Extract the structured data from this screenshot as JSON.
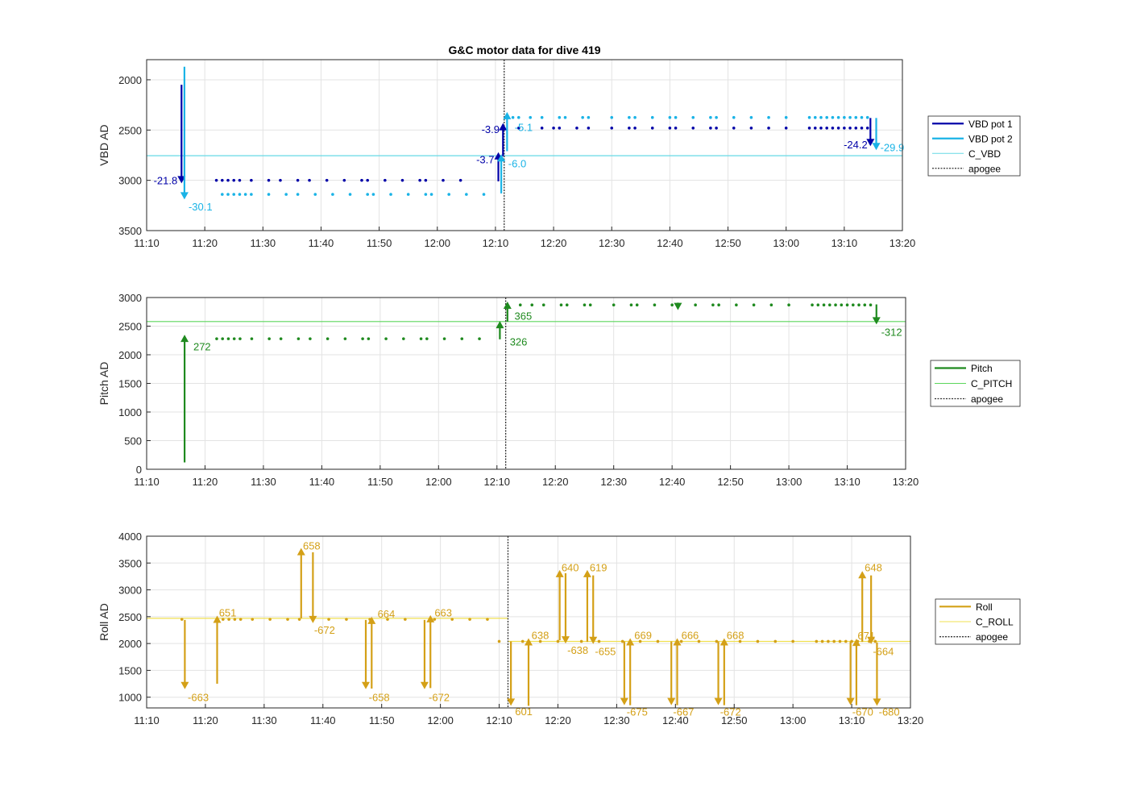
{
  "title": "G&C motor data for dive 419",
  "chart_data": [
    {
      "type": "line",
      "id": "vbd",
      "ylabel": "VBD AD",
      "xlim": [
        "11:10",
        "13:20"
      ],
      "ylim": [
        1800,
        3500
      ],
      "y_reversed": true,
      "yticks": [
        2000,
        2500,
        3000,
        3500
      ],
      "xticks": [
        "11:10",
        "11:20",
        "11:30",
        "11:40",
        "11:50",
        "12:00",
        "12:10",
        "12:20",
        "12:30",
        "12:40",
        "12:50",
        "13:00",
        "13:10",
        "13:20"
      ],
      "grid": true,
      "legend_position": "right",
      "legend": [
        {
          "label": "VBD pot 1",
          "style": "thick",
          "color": "#0000a8"
        },
        {
          "label": "VBD pot 2",
          "style": "thick",
          "color": "#1ab3e6"
        },
        {
          "label": "C_VBD",
          "style": "thin",
          "color": "#66d9e6"
        },
        {
          "label": "apogee",
          "style": "dotted",
          "color": "#333333"
        }
      ],
      "reference_lines": [
        {
          "name": "C_VBD",
          "y": 2755,
          "color": "#66d9e6"
        }
      ],
      "apogee": "12:11.5",
      "series": [
        {
          "name": "VBD pot 1",
          "color": "#0000a8",
          "times": [
            "11:22",
            "11:23",
            "11:24",
            "11:25",
            "11:26",
            "11:28",
            "11:31",
            "11:33",
            "11:36",
            "11:38",
            "11:41",
            "11:44",
            "11:47",
            "11:48",
            "11:51",
            "11:54",
            "11:57",
            "11:58",
            "12:01",
            "12:04"
          ],
          "y": 3000
        },
        {
          "name": "VBD pot 1 (after apogee)",
          "color": "#0000a8",
          "times": [
            "12:14",
            "12:18",
            "12:20",
            "12:21",
            "12:24",
            "12:26",
            "12:30",
            "12:33",
            "12:34",
            "12:37",
            "12:40",
            "12:41",
            "12:44",
            "12:47",
            "12:48",
            "12:51",
            "12:54",
            "12:57",
            "13:00",
            "13:04",
            "13:05",
            "13:06",
            "13:07",
            "13:08",
            "13:09",
            "13:10",
            "13:11",
            "13:12",
            "13:13",
            "13:14"
          ],
          "y": 2480
        },
        {
          "name": "VBD pot 2",
          "color": "#1ab3e6",
          "times": [
            "11:23",
            "11:24",
            "11:25",
            "11:26",
            "11:27",
            "11:28",
            "11:31",
            "11:34",
            "11:36",
            "11:39",
            "11:42",
            "11:45",
            "11:48",
            "11:49",
            "11:52",
            "11:55",
            "11:58",
            "11:59",
            "12:02",
            "12:05",
            "12:08"
          ],
          "y": 3140
        },
        {
          "name": "VBD pot 2 (after apogee)",
          "color": "#1ab3e6",
          "times": [
            "12:13",
            "12:14",
            "12:16",
            "12:18",
            "12:21",
            "12:22",
            "12:25",
            "12:26",
            "12:30",
            "12:33",
            "12:34",
            "12:37",
            "12:40",
            "12:41",
            "12:44",
            "12:47",
            "12:48",
            "12:51",
            "12:54",
            "12:57",
            "13:00",
            "13:04",
            "13:05",
            "13:06",
            "13:07",
            "13:08",
            "13:09",
            "13:10",
            "13:11",
            "13:12",
            "13:13",
            "13:14"
          ],
          "y": 2375
        }
      ],
      "arrows": [
        {
          "t": "11:16",
          "from": 2050,
          "to": 3030,
          "color": "#0000a8",
          "label": "-21.8",
          "lt": "11:15.3",
          "ly": 3000,
          "anchor": "end"
        },
        {
          "t": "11:16.5",
          "from": 1870,
          "to": 3190,
          "color": "#1ab3e6",
          "label": "-30.1",
          "lt": "11:17.2",
          "ly": 3260,
          "anchor": "start"
        },
        {
          "t": "12:10.5",
          "from": 3010,
          "to": 2720,
          "color": "#0000a8",
          "label": "-3.7",
          "lt": "12:09.8",
          "ly": 2790,
          "anchor": "end"
        },
        {
          "t": "12:11",
          "from": 3130,
          "to": 2740,
          "color": "#1ab3e6",
          "label": "-6.0",
          "lt": "12:12.2",
          "ly": 2830,
          "anchor": "start"
        },
        {
          "t": "12:11.3",
          "from": 2760,
          "to": 2430,
          "color": "#0000a8",
          "label": "-3.9",
          "lt": "12:10.7",
          "ly": 2490,
          "anchor": "end"
        },
        {
          "t": "12:12",
          "from": 2710,
          "to": 2320,
          "color": "#1ab3e6",
          "label": "-5.1",
          "lt": "12:13.3",
          "ly": 2470,
          "anchor": "start"
        },
        {
          "t": "13:14.5",
          "from": 2380,
          "to": 2660,
          "color": "#0000a8",
          "label": "-24.2",
          "lt": "13:14",
          "ly": 2640,
          "anchor": "end"
        },
        {
          "t": "13:15.5",
          "from": 2380,
          "to": 2700,
          "color": "#1ab3e6",
          "label": "-29.9",
          "lt": "13:16.2",
          "ly": 2670,
          "anchor": "start"
        }
      ]
    },
    {
      "type": "line",
      "id": "pitch",
      "ylabel": "Pitch AD",
      "xlim": [
        "11:10",
        "13:20"
      ],
      "ylim": [
        0,
        3000
      ],
      "y_reversed": false,
      "yticks": [
        0,
        500,
        1000,
        1500,
        2000,
        2500,
        3000
      ],
      "xticks": [
        "11:10",
        "11:20",
        "11:30",
        "11:40",
        "11:50",
        "12:00",
        "12:10",
        "12:20",
        "12:30",
        "12:40",
        "12:50",
        "13:00",
        "13:10",
        "13:20"
      ],
      "grid": true,
      "legend_position": "right",
      "legend": [
        {
          "label": "Pitch",
          "style": "thick",
          "color": "#1f8a1f"
        },
        {
          "label": "C_PITCH",
          "style": "thin",
          "color": "#5cd65c"
        },
        {
          "label": "apogee",
          "style": "dotted",
          "color": "#333333"
        }
      ],
      "reference_lines": [
        {
          "name": "C_PITCH",
          "y": 2580,
          "color": "#5cd65c"
        }
      ],
      "apogee": "12:11.5",
      "series": [
        {
          "name": "Pitch",
          "color": "#1f8a1f",
          "times": [
            "11:22",
            "11:23",
            "11:24",
            "11:25",
            "11:26",
            "11:28",
            "11:31",
            "11:33",
            "11:36",
            "11:38",
            "11:41",
            "11:44",
            "11:47",
            "11:48",
            "11:51",
            "11:54",
            "11:57",
            "11:58",
            "12:01",
            "12:04",
            "12:07"
          ],
          "y": 2280
        },
        {
          "name": "Pitch (after apogee)",
          "color": "#1f8a1f",
          "times": [
            "12:14",
            "12:16",
            "12:18",
            "12:21",
            "12:22",
            "12:25",
            "12:26",
            "12:30",
            "12:33",
            "12:34",
            "12:37",
            "12:40",
            "12:44",
            "12:47",
            "12:48",
            "12:51",
            "12:54",
            "12:57",
            "13:00",
            "13:04",
            "13:05",
            "13:06",
            "13:07",
            "13:08",
            "13:09",
            "13:10",
            "13:11",
            "13:12",
            "13:13",
            "13:14"
          ],
          "y": 2870
        }
      ],
      "arrows": [
        {
          "t": "11:16.5",
          "from": 120,
          "to": 2350,
          "color": "#1f8a1f",
          "label": "272",
          "lt": "11:18",
          "ly": 2150,
          "anchor": "start"
        },
        {
          "t": "12:10.5",
          "from": 2270,
          "to": 2590,
          "color": "#1f8a1f",
          "label": "326",
          "lt": "12:12.2",
          "ly": 2230,
          "anchor": "start"
        },
        {
          "t": "12:11.8",
          "from": 2580,
          "to": 2930,
          "color": "#1f8a1f",
          "label": "365",
          "lt": "12:13",
          "ly": 2680,
          "anchor": "start"
        },
        {
          "t": "12:41",
          "from": 2910,
          "to": 2780,
          "color": "#1f8a1f",
          "label": "",
          "lt": "12:41",
          "ly": 2780,
          "anchor": "start"
        },
        {
          "t": "13:15",
          "from": 2880,
          "to": 2530,
          "color": "#1f8a1f",
          "label": "-312",
          "lt": "13:15.8",
          "ly": 2400,
          "anchor": "start"
        }
      ]
    },
    {
      "type": "line",
      "id": "roll",
      "ylabel": "Roll AD",
      "xlim": [
        "11:10",
        "13:20"
      ],
      "ylim": [
        800,
        4000
      ],
      "y_reversed": false,
      "yticks": [
        1000,
        1500,
        2000,
        2500,
        3000,
        3500,
        4000
      ],
      "xticks": [
        "11:10",
        "11:20",
        "11:30",
        "11:40",
        "11:50",
        "12:00",
        "12:10",
        "12:20",
        "12:30",
        "12:40",
        "12:50",
        "13:00",
        "13:10",
        "13:20"
      ],
      "grid": true,
      "legend_position": "right",
      "legend": [
        {
          "label": "Roll",
          "style": "thick",
          "color": "#d4a017"
        },
        {
          "label": "C_ROLL",
          "style": "thin",
          "color": "#f0e050"
        },
        {
          "label": "apogee",
          "style": "dotted",
          "color": "#333333"
        }
      ],
      "reference_lines": [
        {
          "name": "C_ROLL",
          "y": 2470,
          "color": "#f0e050",
          "from": "11:10",
          "to": "12:11.5"
        },
        {
          "name": "C_ROLL",
          "y": 2040,
          "color": "#f0e050",
          "from": "12:11.5",
          "to": "13:20"
        }
      ],
      "apogee": "12:11.5",
      "series": [
        {
          "name": "Roll",
          "color": "#d4a017",
          "times": [
            "11:16",
            "11:23",
            "11:24",
            "11:25",
            "11:26",
            "11:28",
            "11:31",
            "11:34",
            "11:36",
            "11:41",
            "11:44",
            "11:48",
            "11:51",
            "11:54",
            "11:59",
            "12:02",
            "12:05",
            "12:08"
          ],
          "y": 2450
        },
        {
          "name": "Roll (after apogee)",
          "color": "#d4a017",
          "times": [
            "12:10",
            "12:14",
            "12:17",
            "12:20",
            "12:24",
            "12:27",
            "12:31",
            "12:34",
            "12:37",
            "12:41",
            "12:44",
            "12:47",
            "12:51",
            "12:54",
            "12:57",
            "13:00",
            "13:04",
            "13:05",
            "13:06",
            "13:07",
            "13:08",
            "13:09",
            "13:10",
            "13:11",
            "13:13",
            "13:14"
          ],
          "y": 2040
        }
      ],
      "arrows": [
        {
          "t": "11:16.5",
          "from": 2440,
          "to": 1150,
          "color": "#d4a017",
          "label": "-663",
          "lt": "11:17",
          "ly": 1000,
          "anchor": "start"
        },
        {
          "t": "11:22",
          "from": 1250,
          "to": 2520,
          "color": "#d4a017",
          "label": "651",
          "lt": "11:22.3",
          "ly": 2580,
          "anchor": "start"
        },
        {
          "t": "11:36.3",
          "from": 2470,
          "to": 3780,
          "color": "#d4a017",
          "label": "658",
          "lt": "11:36.6",
          "ly": 3830,
          "anchor": "start"
        },
        {
          "t": "11:38.3",
          "from": 3700,
          "to": 2380,
          "color": "#d4a017",
          "label": "-672",
          "lt": "11:38.5",
          "ly": 2260,
          "anchor": "start"
        },
        {
          "t": "11:47.3",
          "from": 2440,
          "to": 1150,
          "color": "#d4a017",
          "label": "-658",
          "lt": "11:47.8",
          "ly": 1000,
          "anchor": "start"
        },
        {
          "t": "11:48.3",
          "from": 1160,
          "to": 2500,
          "color": "#d4a017",
          "label": "664",
          "lt": "11:49.3",
          "ly": 2560,
          "anchor": "start"
        },
        {
          "t": "11:57.3",
          "from": 2440,
          "to": 1150,
          "color": "#d4a017",
          "label": "-672",
          "lt": "11:58",
          "ly": 1000,
          "anchor": "start"
        },
        {
          "t": "11:58.3",
          "from": 1170,
          "to": 2530,
          "color": "#d4a017",
          "label": "663",
          "lt": "11:59",
          "ly": 2580,
          "anchor": "start"
        },
        {
          "t": "12:12",
          "from": 2040,
          "to": 840,
          "color": "#d4a017",
          "label": "601",
          "lt": "12:12.7",
          "ly": 740,
          "anchor": "start"
        },
        {
          "t": "12:15",
          "from": 840,
          "to": 2100,
          "color": "#d4a017",
          "label": "638",
          "lt": "12:15.5",
          "ly": 2160,
          "anchor": "start"
        },
        {
          "t": "12:20.3",
          "from": 2060,
          "to": 3370,
          "color": "#d4a017",
          "label": "640",
          "lt": "12:20.6",
          "ly": 3420,
          "anchor": "start"
        },
        {
          "t": "12:21.3",
          "from": 3310,
          "to": 2000,
          "color": "#d4a017",
          "label": "-638",
          "lt": "12:21.6",
          "ly": 1880,
          "anchor": "start"
        },
        {
          "t": "12:25",
          "from": 2030,
          "to": 3370,
          "color": "#d4a017",
          "label": "619",
          "lt": "12:25.4",
          "ly": 3420,
          "anchor": "start"
        },
        {
          "t": "12:26",
          "from": 3270,
          "to": 1990,
          "color": "#d4a017",
          "label": "-655",
          "lt": "12:26.3",
          "ly": 1860,
          "anchor": "start"
        },
        {
          "t": "12:31.3",
          "from": 2040,
          "to": 850,
          "color": "#d4a017",
          "label": "-675",
          "lt": "12:31.7",
          "ly": 730,
          "anchor": "start"
        },
        {
          "t": "12:32.3",
          "from": 850,
          "to": 2100,
          "color": "#d4a017",
          "label": "669",
          "lt": "12:33",
          "ly": 2160,
          "anchor": "start"
        },
        {
          "t": "12:39.3",
          "from": 2040,
          "to": 850,
          "color": "#d4a017",
          "label": "-667",
          "lt": "12:39.6",
          "ly": 730,
          "anchor": "start"
        },
        {
          "t": "12:40.3",
          "from": 850,
          "to": 2100,
          "color": "#d4a017",
          "label": "666",
          "lt": "12:41",
          "ly": 2160,
          "anchor": "start"
        },
        {
          "t": "12:47.3",
          "from": 2040,
          "to": 850,
          "color": "#d4a017",
          "label": "-672",
          "lt": "12:47.6",
          "ly": 730,
          "anchor": "start"
        },
        {
          "t": "12:48.3",
          "from": 850,
          "to": 2100,
          "color": "#d4a017",
          "label": "668",
          "lt": "12:48.7",
          "ly": 2160,
          "anchor": "start"
        },
        {
          "t": "13:09.8",
          "from": 2040,
          "to": 850,
          "color": "#d4a017",
          "label": "-670",
          "lt": "13:10.1",
          "ly": 730,
          "anchor": "start"
        },
        {
          "t": "13:10.8",
          "from": 850,
          "to": 2090,
          "color": "#d4a017",
          "label": "671",
          "lt": "13:11",
          "ly": 2150,
          "anchor": "start"
        },
        {
          "t": "13:11.8",
          "from": 2030,
          "to": 3350,
          "color": "#d4a017",
          "label": "648",
          "lt": "13:12.2",
          "ly": 3420,
          "anchor": "start"
        },
        {
          "t": "13:13.3",
          "from": 3270,
          "to": 1990,
          "color": "#d4a017",
          "label": "-664",
          "lt": "13:13.6",
          "ly": 1860,
          "anchor": "start"
        },
        {
          "t": "13:14.3",
          "from": 2020,
          "to": 840,
          "color": "#d4a017",
          "label": "-680",
          "lt": "13:14.6",
          "ly": 730,
          "anchor": "start"
        }
      ]
    }
  ]
}
